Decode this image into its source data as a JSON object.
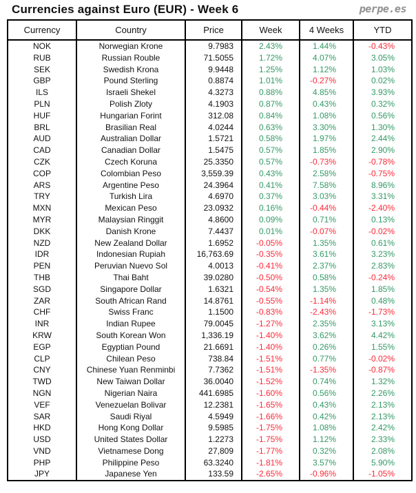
{
  "header": {
    "title": "Currencies against Euro (EUR) - Week 6",
    "brand": "perpe.es"
  },
  "colors": {
    "positive": "#339966",
    "negative": "#fb2a38",
    "text": "#111111",
    "border": "#000000",
    "brand": "#8f8f8f",
    "background": "#ffffff"
  },
  "chart_data": {
    "type": "table",
    "title": "Currencies against Euro (EUR) - Week 6",
    "columns": [
      "Currency",
      "Country",
      "Price",
      "Week",
      "4 Weeks",
      "YTD"
    ],
    "rows": [
      [
        "NOK",
        "Norwegian Krone",
        "9.7983",
        "2.43%",
        "1.44%",
        "-0.43%"
      ],
      [
        "RUB",
        "Russian Rouble",
        "71.5055",
        "1.72%",
        "4.07%",
        "3.05%"
      ],
      [
        "SEK",
        "Swedish Krona",
        "9.9448",
        "1.25%",
        "1.12%",
        "1.03%"
      ],
      [
        "GBP",
        "Pound Sterling",
        "0.8874",
        "1.01%",
        "-0.27%",
        "0.02%"
      ],
      [
        "ILS",
        "Israeli Shekel",
        "4.3273",
        "0.88%",
        "4.85%",
        "3.93%"
      ],
      [
        "PLN",
        "Polish Zloty",
        "4.1903",
        "0.87%",
        "0.43%",
        "0.32%"
      ],
      [
        "HUF",
        "Hungarian Forint",
        "312.08",
        "0.84%",
        "1.08%",
        "0.56%"
      ],
      [
        "BRL",
        "Brasilian Real",
        "4.0244",
        "0.63%",
        "3.30%",
        "1.30%"
      ],
      [
        "AUD",
        "Australian Dollar",
        "1.5721",
        "0.58%",
        "1.97%",
        "2.44%"
      ],
      [
        "CAD",
        "Canadian Dollar",
        "1.5475",
        "0.57%",
        "1.85%",
        "2.90%"
      ],
      [
        "CZK",
        "Czech Koruna",
        "25.3350",
        "0.57%",
        "-0.73%",
        "-0.78%"
      ],
      [
        "COP",
        "Colombian Peso",
        "3,559.39",
        "0.43%",
        "2.58%",
        "-0.75%"
      ],
      [
        "ARS",
        "Argentine Peso",
        "24.3964",
        "0.41%",
        "7.58%",
        "8.96%"
      ],
      [
        "TRY",
        "Turkish Lira",
        "4.6970",
        "0.37%",
        "3.03%",
        "3.31%"
      ],
      [
        "MXN",
        "Mexican Peso",
        "23.0932",
        "0.16%",
        "-0.44%",
        "-2.40%"
      ],
      [
        "MYR",
        "Malaysian Ringgit",
        "4.8600",
        "0.09%",
        "0.71%",
        "0.13%"
      ],
      [
        "DKK",
        "Danish Krone",
        "7.4437",
        "0.01%",
        "-0.07%",
        "-0.02%"
      ],
      [
        "NZD",
        "New Zealand Dollar",
        "1.6952",
        "-0.05%",
        "1.35%",
        "0.61%"
      ],
      [
        "IDR",
        "Indonesian Rupiah",
        "16,763.69",
        "-0.35%",
        "3.61%",
        "3.23%"
      ],
      [
        "PEN",
        "Peruvian Nuevo Sol",
        "4.0013",
        "-0.41%",
        "2.37%",
        "2.83%"
      ],
      [
        "THB",
        "Thai Baht",
        "39.0280",
        "-0.50%",
        "0.58%",
        "-0.24%"
      ],
      [
        "SGD",
        "Singapore Dollar",
        "1.6321",
        "-0.54%",
        "1.35%",
        "1.85%"
      ],
      [
        "ZAR",
        "South African Rand",
        "14.8761",
        "-0.55%",
        "-1.14%",
        "0.48%"
      ],
      [
        "CHF",
        "Swiss Franc",
        "1.1500",
        "-0.83%",
        "-2.43%",
        "-1.73%"
      ],
      [
        "INR",
        "Indian Rupee",
        "79.0045",
        "-1.27%",
        "2.35%",
        "3.13%"
      ],
      [
        "KRW",
        "South Korean Won",
        "1,336.19",
        "-1.40%",
        "3.62%",
        "4.42%"
      ],
      [
        "EGP",
        "Egyptian Pound",
        "21.6691",
        "-1.40%",
        "0.26%",
        "1.55%"
      ],
      [
        "CLP",
        "Chilean Peso",
        "738.84",
        "-1.51%",
        "0.77%",
        "-0.02%"
      ],
      [
        "CNY",
        "Chinese Yuan Renminbi",
        "7.7362",
        "-1.51%",
        "-1.35%",
        "-0.87%"
      ],
      [
        "TWD",
        "New Taiwan Dollar",
        "36.0040",
        "-1.52%",
        "0.74%",
        "1.32%"
      ],
      [
        "NGN",
        "Nigerian Naira",
        "441.6985",
        "-1.60%",
        "0.56%",
        "2.26%"
      ],
      [
        "VEF",
        "Venezuelan Bolivar",
        "12.2381",
        "-1.65%",
        "0.43%",
        "2.13%"
      ],
      [
        "SAR",
        "Saudi Riyal",
        "4.5949",
        "-1.66%",
        "0.42%",
        "2.13%"
      ],
      [
        "HKD",
        "Hong Kong Dollar",
        "9.5985",
        "-1.75%",
        "1.08%",
        "2.42%"
      ],
      [
        "USD",
        "United States Dollar",
        "1.2273",
        "-1.75%",
        "1.12%",
        "2.33%"
      ],
      [
        "VND",
        "Vietnamese Dong",
        "27,809",
        "-1.77%",
        "0.32%",
        "2.08%"
      ],
      [
        "PHP",
        "Philippine Peso",
        "63.3240",
        "-1.81%",
        "3.57%",
        "5.90%"
      ],
      [
        "JPY",
        "Japanese Yen",
        "133.59",
        "-2.65%",
        "-0.96%",
        "-1.05%"
      ]
    ]
  }
}
